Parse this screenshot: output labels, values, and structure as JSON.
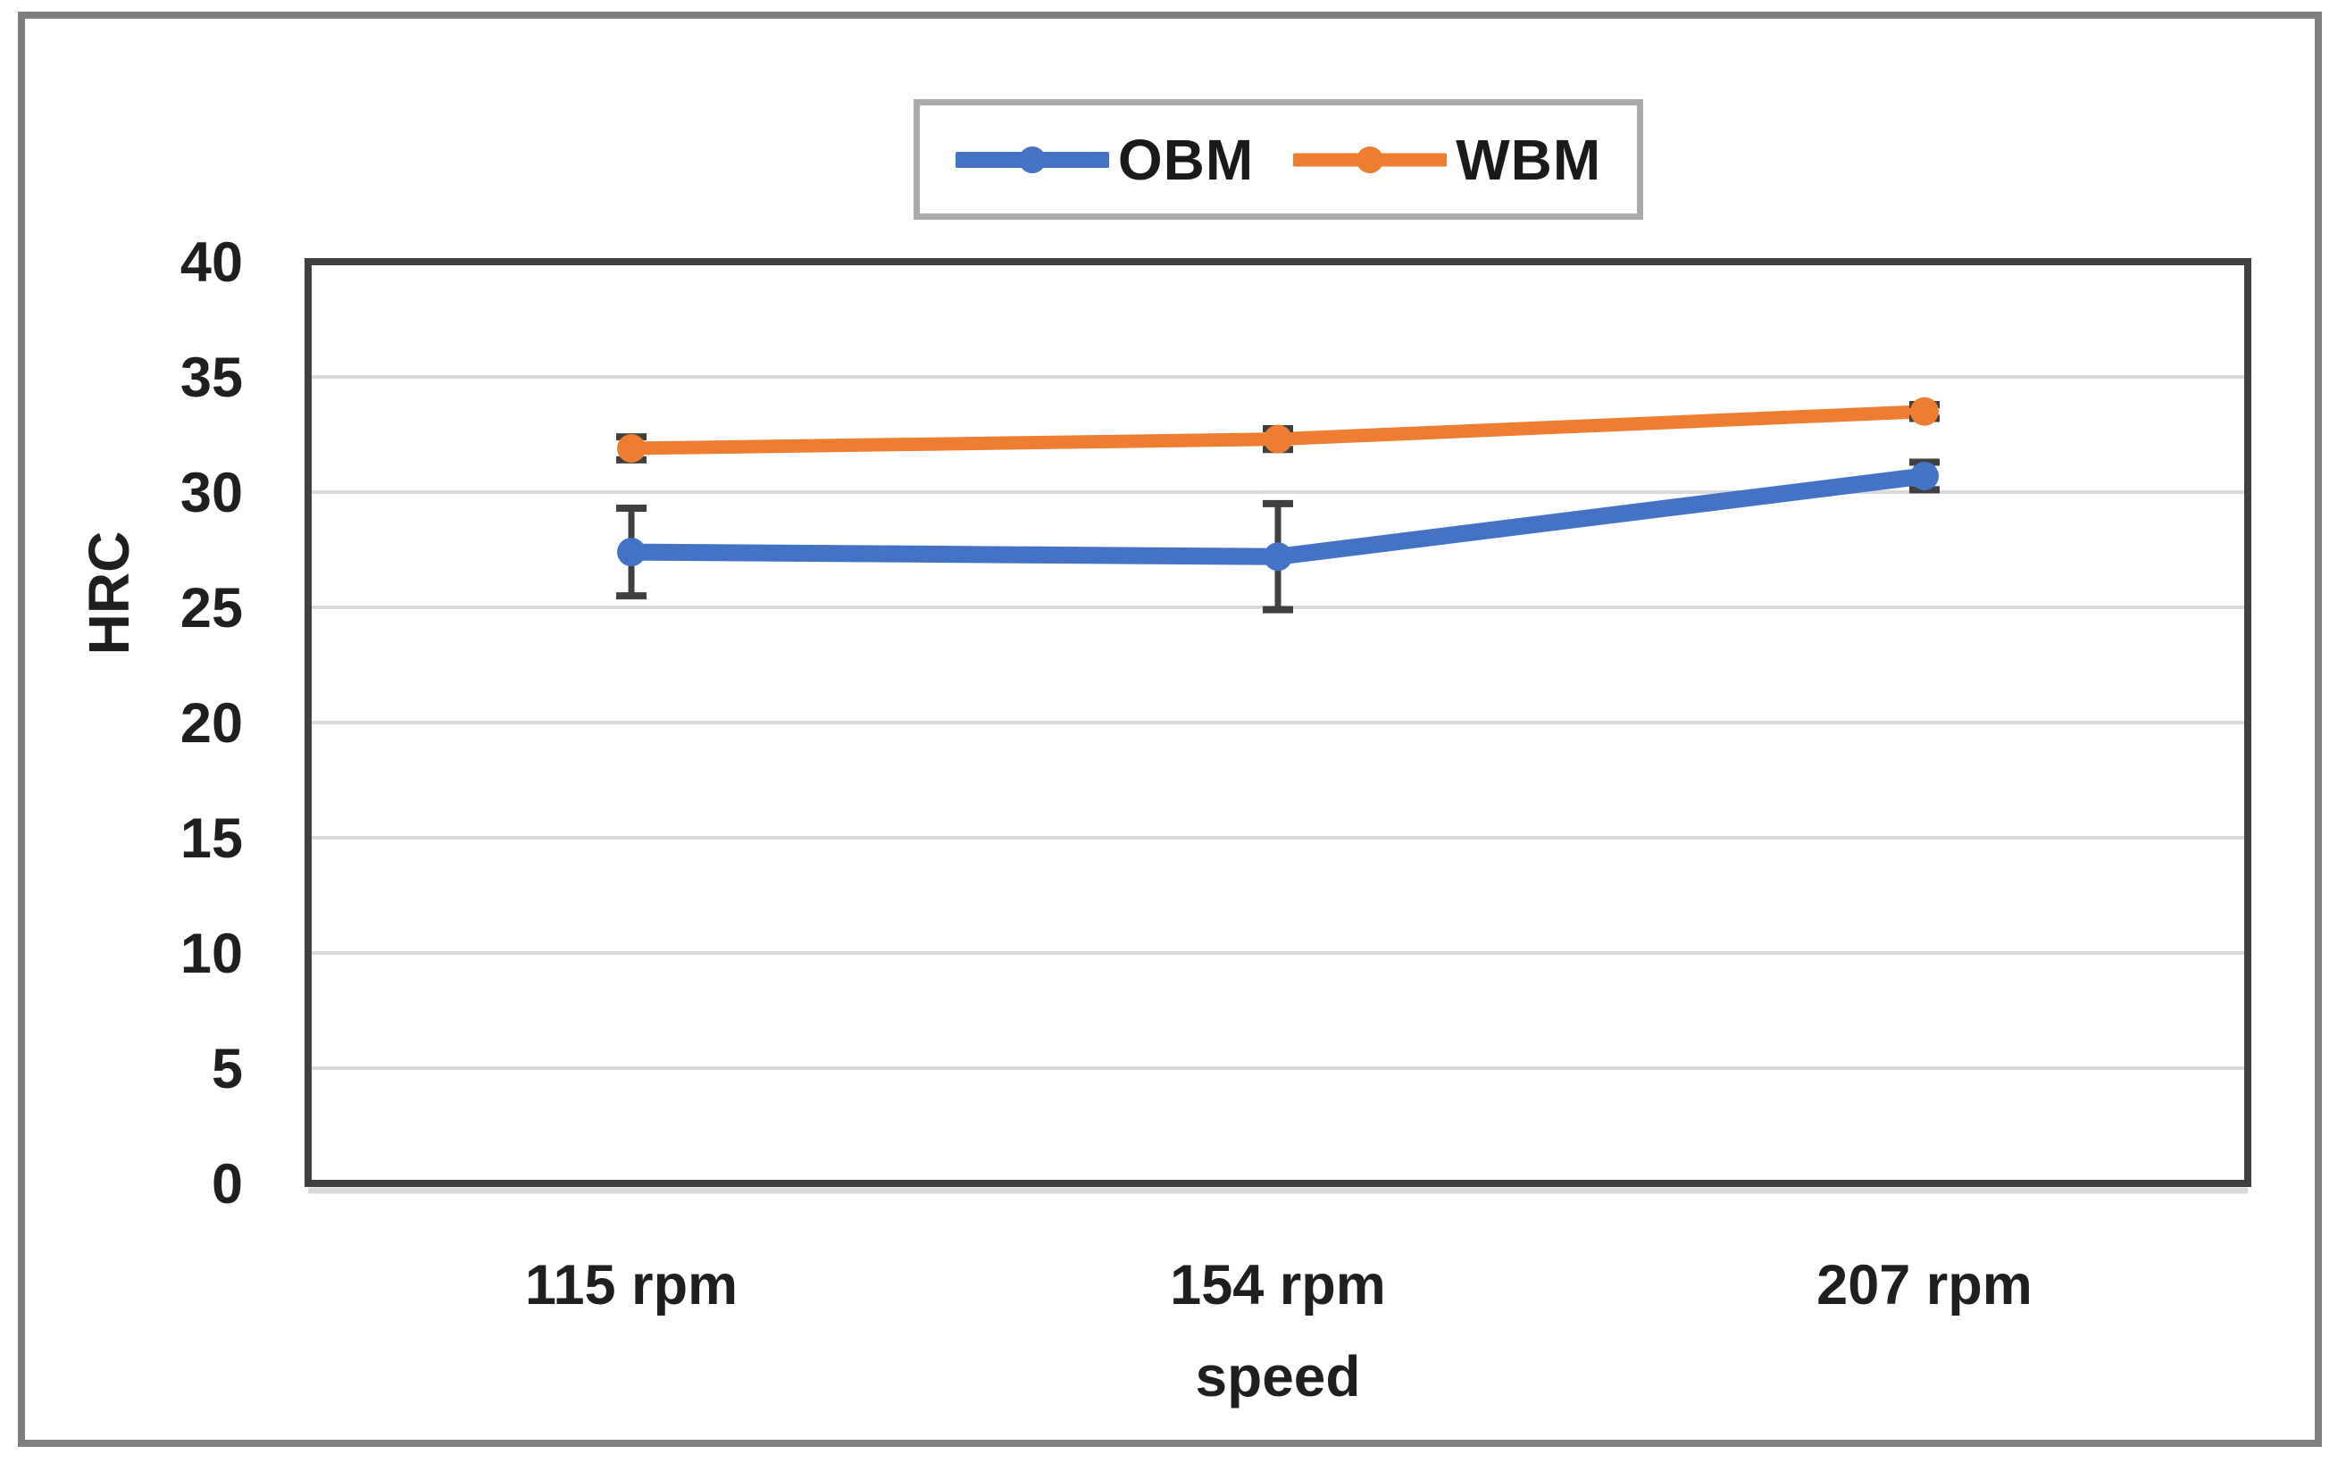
{
  "chart_data": {
    "type": "line",
    "title": "",
    "categories": [
      "115 rpm",
      "154 rpm",
      "207 rpm"
    ],
    "series": [
      {
        "name": "OBM",
        "color": "#4472C4",
        "values": [
          27.4,
          27.2,
          30.7
        ],
        "error_bars": [
          1.9,
          2.3,
          0.6
        ]
      },
      {
        "name": "WBM",
        "color": "#ED7D31",
        "values": [
          31.9,
          32.3,
          33.5
        ],
        "error_bars": [
          0.5,
          0.45,
          0.3
        ]
      }
    ],
    "xlabel": "speed",
    "ylabel": "HRC",
    "ylim": [
      0,
      40
    ],
    "yticks": [
      0,
      5,
      10,
      15,
      20,
      25,
      30,
      35,
      40
    ],
    "grid": "horizontal",
    "legend_position": "top-center",
    "marker": "circle",
    "colors": {
      "grid_line": "#d9d9d9",
      "plot_border": "#404040",
      "error_bar": "#404040",
      "figure_border": "#7f7f7f",
      "legend_border": "#ababab",
      "text": "#1f1f1f",
      "background": "#ffffff"
    }
  }
}
